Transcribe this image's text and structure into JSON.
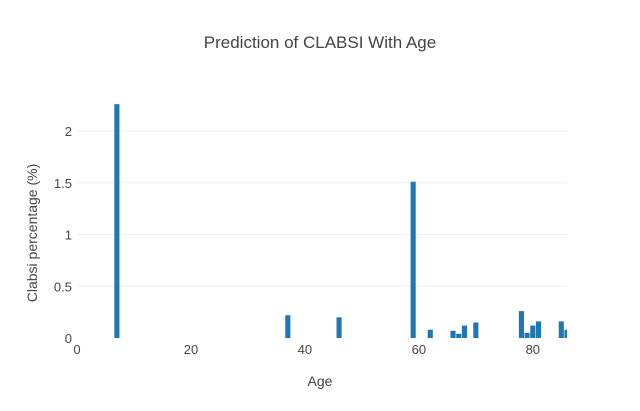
{
  "chart_data": {
    "type": "bar",
    "title": "Prediction of CLABSI With Age",
    "xlabel": "Age",
    "ylabel": "Clabsi percentage (%)",
    "xlim": [
      0,
      86
    ],
    "ylim": [
      0,
      2.3
    ],
    "x_ticks": [
      0,
      20,
      40,
      60,
      80
    ],
    "y_ticks": [
      0,
      0.5,
      1,
      1.5,
      2
    ],
    "y_tick_labels": [
      "0",
      "0.5",
      "1",
      "1.5",
      "2"
    ],
    "grid": true,
    "bar_color": "#1f77b4",
    "x": [
      7,
      37,
      46,
      59,
      62,
      66,
      67,
      68,
      70,
      78,
      79,
      80,
      81,
      85,
      86
    ],
    "values": [
      2.26,
      0.22,
      0.2,
      1.51,
      0.08,
      0.07,
      0.04,
      0.12,
      0.15,
      0.26,
      0.05,
      0.12,
      0.16,
      0.16,
      0.08
    ]
  }
}
